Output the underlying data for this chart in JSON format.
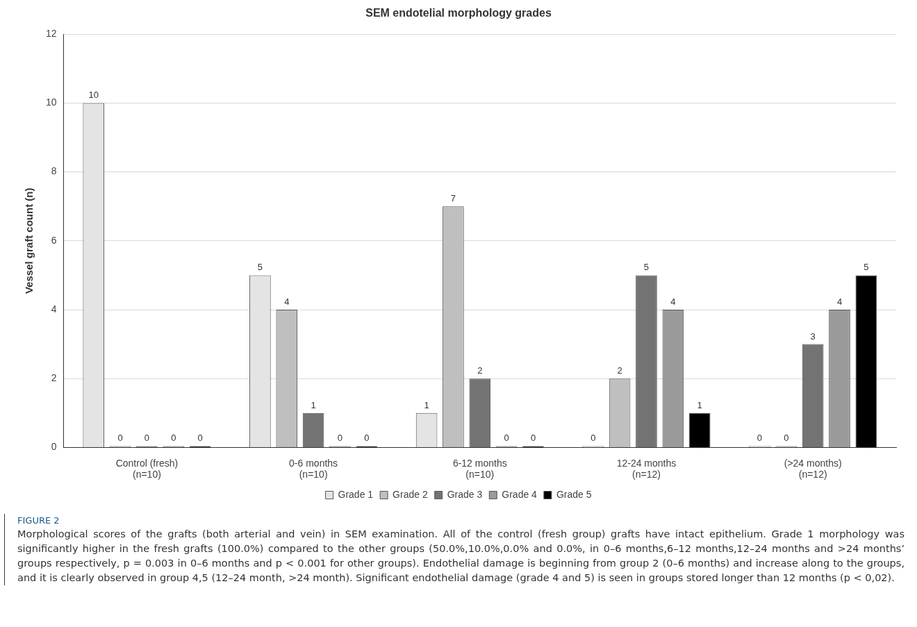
{
  "chart_data": {
    "type": "bar",
    "title": "SEM endotelial morphology grades",
    "ylabel": "Vessel graft count (n)",
    "categories": [
      "Control (fresh)\n(n=10)",
      "0-6 months\n(n=10)",
      "6-12 months\n(n=10)",
      "12-24 months\n(n=12)",
      "(>24 months)\n(n=12)"
    ],
    "series": [
      {
        "name": "Grade 1",
        "color": "#e4e4e4",
        "values": [
          10,
          5,
          1,
          0,
          0
        ]
      },
      {
        "name": "Grade 2",
        "color": "#bfbfbf",
        "values": [
          0,
          4,
          7,
          2,
          0
        ]
      },
      {
        "name": "Grade 3",
        "color": "#737373",
        "values": [
          0,
          1,
          2,
          5,
          3
        ]
      },
      {
        "name": "Grade 4",
        "color": "#9a9a9a",
        "values": [
          0,
          0,
          0,
          4,
          4
        ]
      },
      {
        "name": "Grade 5",
        "color": "#000000",
        "values": [
          0,
          0,
          0,
          1,
          5
        ]
      }
    ],
    "ylim": [
      0,
      12
    ],
    "yticks": [
      0,
      2,
      4,
      6,
      8,
      10,
      12
    ],
    "grid": "y",
    "legend": "bottom",
    "data_labels": true,
    "annotations": [
      "FIGURE 2",
      "Morphological scores of the grafts (both arterial and vein) in SEM examination. All of the control (fresh group) grafts have intact epithelium. Grade 1 morphology was significantly higher in the fresh grafts (100.0%) compared to the other groups (50.0%,10.0%,0.0% and 0.0%, in 0–6 months,6–12 months,12–24 months and >24 months’ groups respectively, p = 0.003 in 0–6 months and p < 0.001 for other groups). Endothelial damage is beginning from group 2 (0–6 months) and increase along to the groups, and it is clearly observed in group 4,5 (12–24 month, >24 month). Significant endothelial damage (grade 4 and 5) is seen in groups stored longer than 12 months (p < 0,02)."
    ]
  }
}
